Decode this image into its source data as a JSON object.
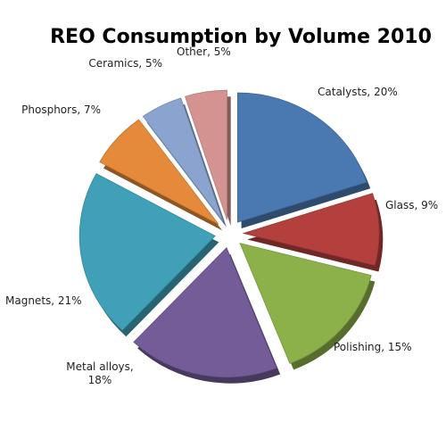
{
  "chart_data": {
    "type": "pie",
    "title": "REO Consumption by Volume 2010",
    "unit": "%",
    "slices": [
      {
        "label": "Catalysts, 20%",
        "value": 20,
        "color": "#4a78b0"
      },
      {
        "label": "Glass, 9%",
        "value": 9,
        "color": "#b3403d"
      },
      {
        "label": "Polishing, 15%",
        "value": 15,
        "color": "#8cb04a"
      },
      {
        "label": "Metal alloys,\n18%",
        "value": 18,
        "color": "#735c98"
      },
      {
        "label": "Magnets, 21%",
        "value": 21,
        "color": "#3fa0b8"
      },
      {
        "label": "Phosphors, 7%",
        "value": 7,
        "color": "#e48a3a"
      },
      {
        "label": "Ceramics, 5%",
        "value": 5,
        "color": "#8aa3cf"
      },
      {
        "label": "Other, 5%",
        "value": 5,
        "color": "#d49390"
      }
    ]
  }
}
